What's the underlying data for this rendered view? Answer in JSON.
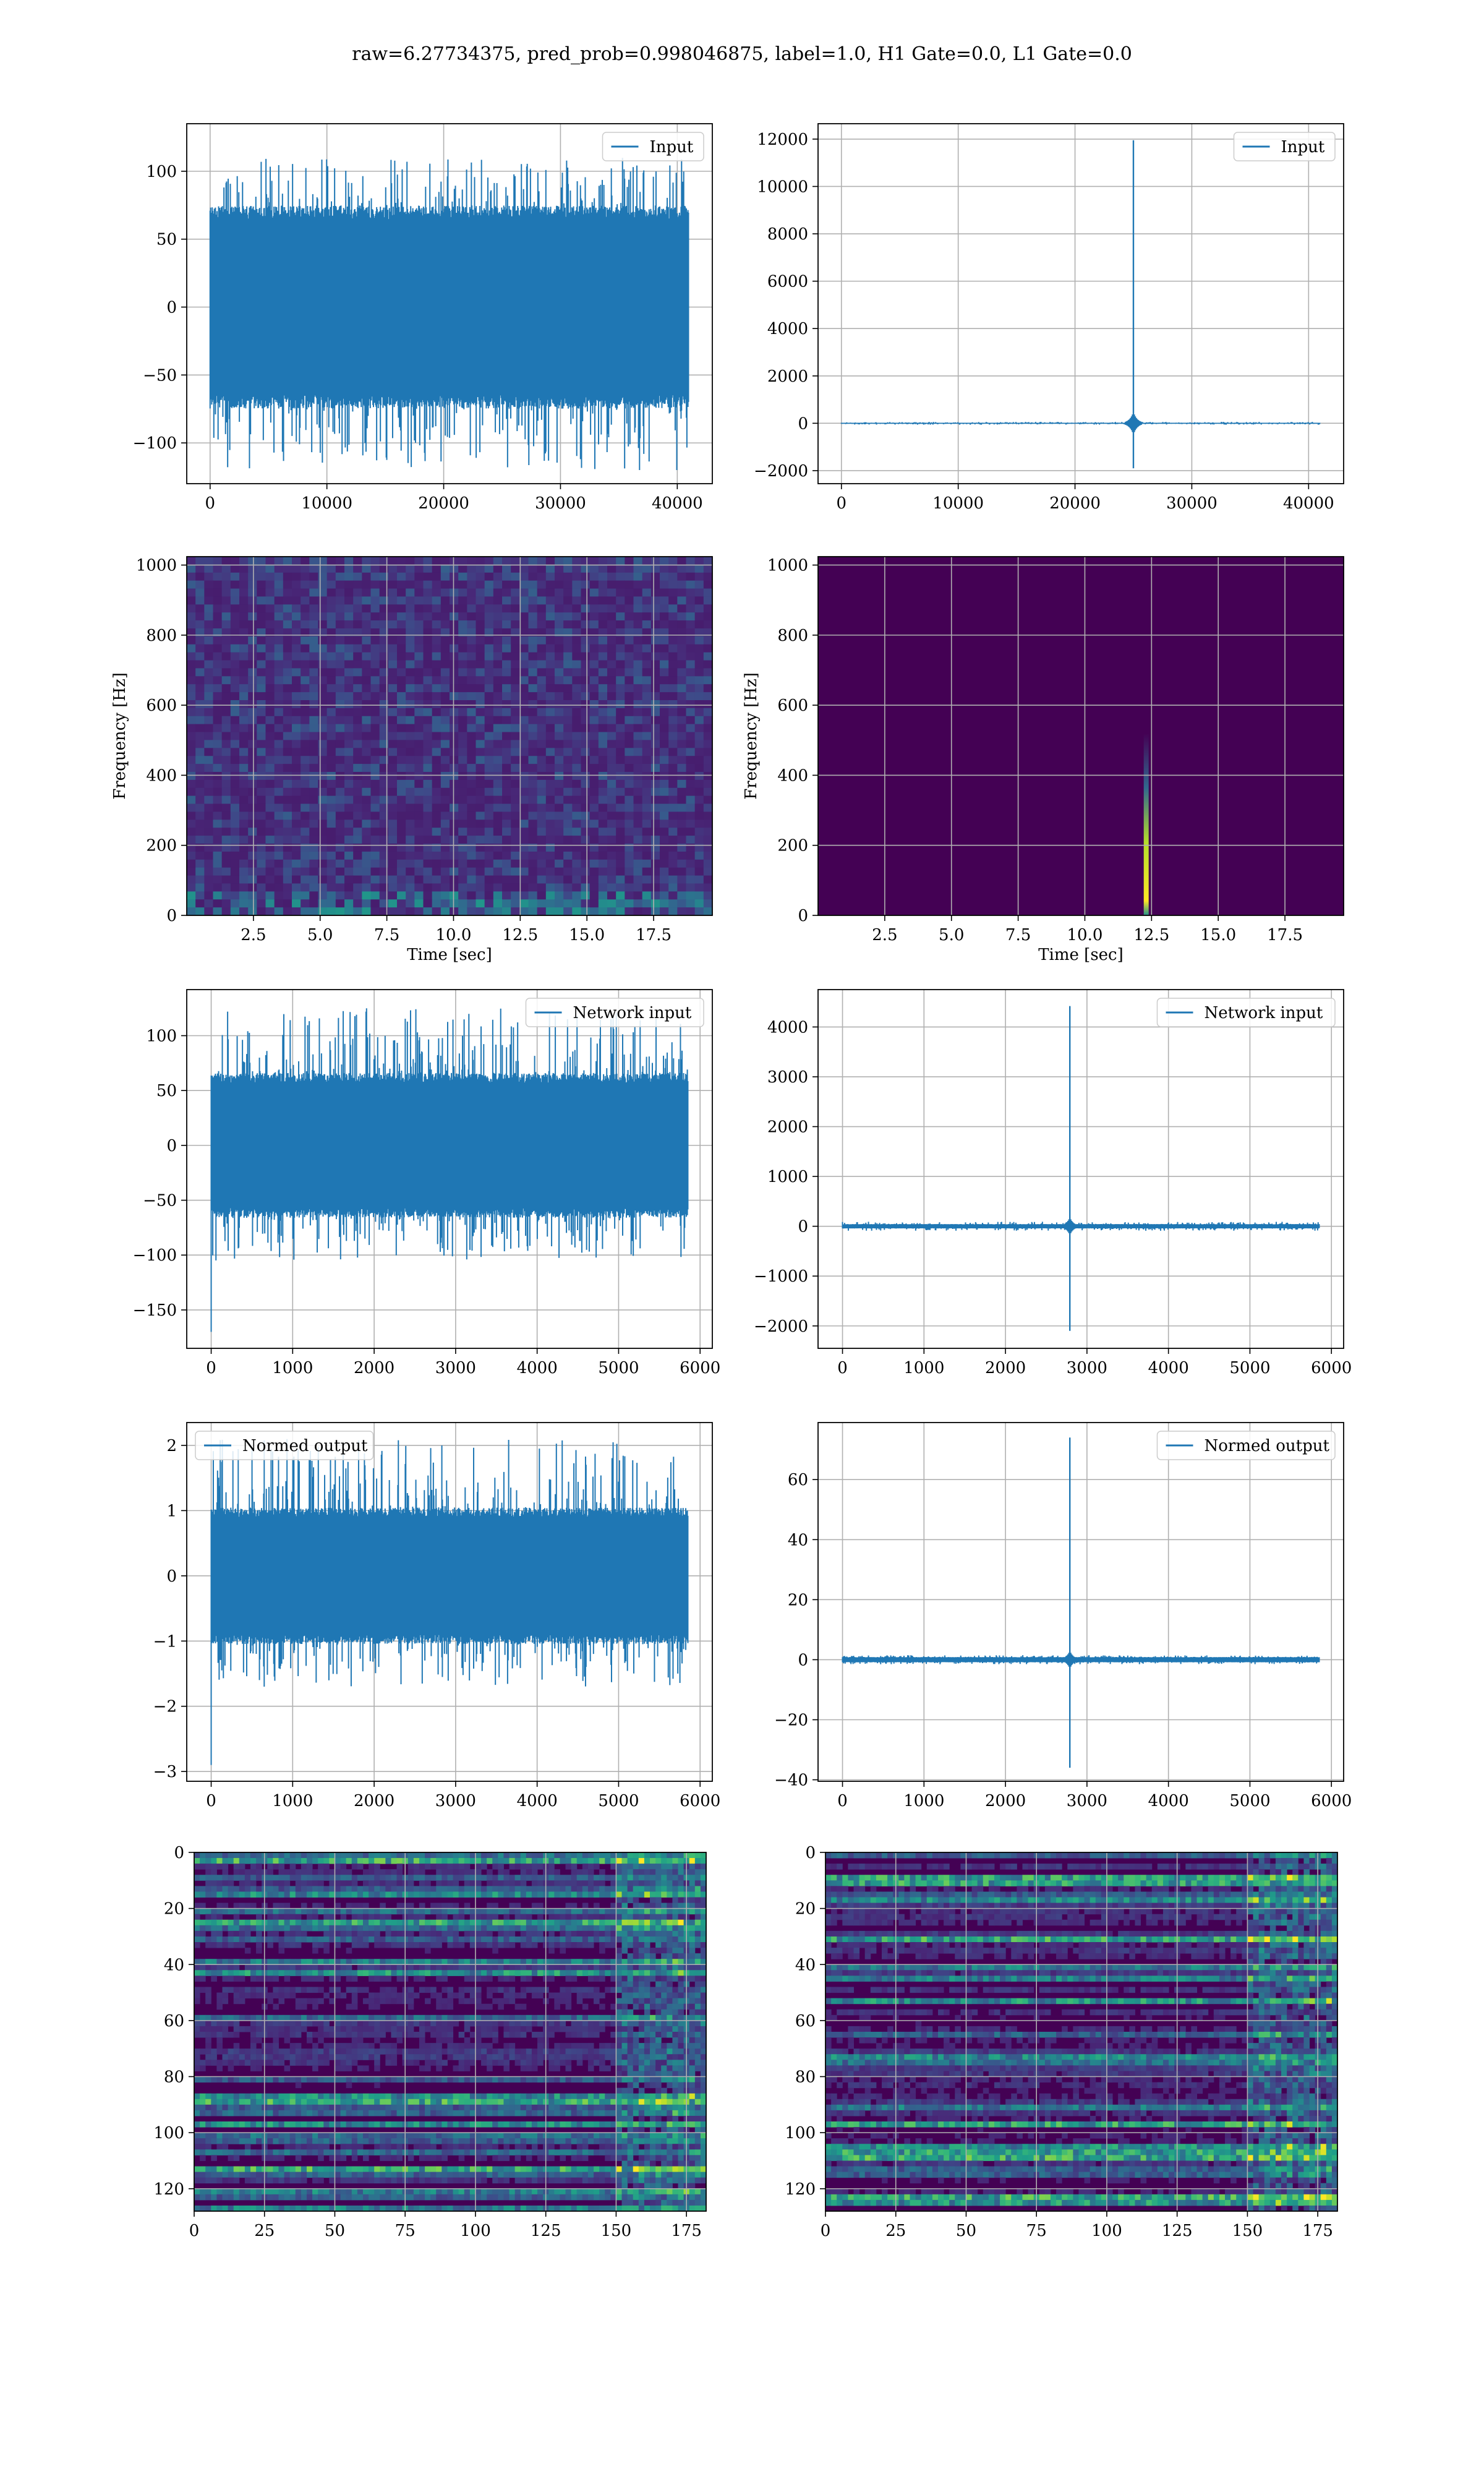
{
  "suptitle": "raw=6.27734375, pred_prob=0.998046875, label=1.0, H1 Gate=0.0, L1 Gate=0.0",
  "colors": {
    "line": "#1f77b4",
    "grid": "#b0b0b0",
    "viridis_dark": "#440154",
    "viridis_mid": "#21918c",
    "viridis_light": "#5ec962",
    "viridis_yellow": "#fde725"
  },
  "chart_data": [
    {
      "id": "input-h1",
      "type": "line",
      "legend": "Input",
      "legend_loc": "upper-right",
      "grid": true,
      "xlim": [
        -2000,
        43000
      ],
      "ylim": [
        -130,
        135
      ],
      "xticks": [
        0,
        10000,
        20000,
        30000,
        40000
      ],
      "yticks": [
        -100,
        -50,
        0,
        50,
        100
      ],
      "signal": {
        "n": 40960,
        "band": 68,
        "peak_max": 110,
        "peak_min": -120,
        "spike": null
      }
    },
    {
      "id": "input-l1",
      "type": "line",
      "legend": "Input",
      "legend_loc": "upper-right",
      "grid": true,
      "xlim": [
        -2000,
        43000
      ],
      "ylim": [
        -2550,
        12650
      ],
      "xticks": [
        0,
        10000,
        20000,
        30000,
        40000
      ],
      "yticks": [
        -2000,
        0,
        2000,
        4000,
        6000,
        8000,
        10000,
        12000
      ],
      "signal": {
        "n": 40960,
        "band": 20,
        "peak_max": 60,
        "peak_min": -60,
        "spike": {
          "x": 25000,
          "max": 11950,
          "min": -1900
        }
      }
    },
    {
      "id": "spectrogram-h1",
      "type": "heatmap",
      "grid": true,
      "xlabel": "Time [sec]",
      "ylabel": "Frequency [Hz]",
      "xlim": [
        0,
        19.7
      ],
      "ylim": [
        0,
        1024
      ],
      "xticks": [
        2.5,
        5.0,
        7.5,
        10.0,
        12.5,
        15.0,
        17.5
      ],
      "yticks": [
        0,
        200,
        400,
        600,
        800,
        1000
      ],
      "content": "noise"
    },
    {
      "id": "spectrogram-l1",
      "type": "heatmap",
      "grid": true,
      "xlabel": "Time [sec]",
      "ylabel": "Frequency [Hz]",
      "xlim": [
        0,
        19.7
      ],
      "ylim": [
        0,
        1024
      ],
      "xticks": [
        2.5,
        5.0,
        7.5,
        10.0,
        12.5,
        15.0,
        17.5
      ],
      "yticks": [
        0,
        200,
        400,
        600,
        800,
        1000
      ],
      "content": "transient",
      "transient_time": 12.3,
      "transient_top_hz": 520
    },
    {
      "id": "network-input-h1",
      "type": "line",
      "legend": "Network input",
      "legend_loc": "upper-right",
      "grid": true,
      "xlim": [
        -300,
        6150
      ],
      "ylim": [
        -185,
        142
      ],
      "xticks": [
        0,
        1000,
        2000,
        3000,
        4000,
        5000,
        6000
      ],
      "yticks": [
        -150,
        -100,
        -50,
        0,
        50,
        100
      ],
      "signal": {
        "n": 5850,
        "band": 60,
        "peak_max": 125,
        "peak_min": -105,
        "spike": null,
        "start_dip": -170
      }
    },
    {
      "id": "network-input-l1",
      "type": "line",
      "legend": "Network input",
      "legend_loc": "upper-right",
      "grid": true,
      "xlim": [
        -300,
        6150
      ],
      "ylim": [
        -2450,
        4750
      ],
      "xticks": [
        0,
        1000,
        2000,
        3000,
        4000,
        5000,
        6000
      ],
      "yticks": [
        -2000,
        -1000,
        0,
        1000,
        2000,
        3000,
        4000
      ],
      "signal": {
        "n": 5850,
        "band": 40,
        "peak_max": 90,
        "peak_min": -90,
        "spike": {
          "x": 2790,
          "max": 4420,
          "min": -2100
        }
      }
    },
    {
      "id": "normed-output-h1",
      "type": "line",
      "legend": "Normed output",
      "legend_loc": "upper-left",
      "grid": true,
      "xlim": [
        -300,
        6150
      ],
      "ylim": [
        -3.15,
        2.35
      ],
      "xticks": [
        0,
        1000,
        2000,
        3000,
        4000,
        5000,
        6000
      ],
      "yticks": [
        -3,
        -2,
        -1,
        0,
        1,
        2
      ],
      "signal": {
        "n": 5850,
        "band": 0.95,
        "peak_max": 2.1,
        "peak_min": -1.7,
        "spike": null,
        "start_dip": -2.9
      }
    },
    {
      "id": "normed-output-l1",
      "type": "line",
      "legend": "Normed output",
      "legend_loc": "upper-right",
      "grid": true,
      "xlim": [
        -300,
        6150
      ],
      "ylim": [
        -40.5,
        79
      ],
      "xticks": [
        0,
        1000,
        2000,
        3000,
        4000,
        5000,
        6000
      ],
      "yticks": [
        -40,
        -20,
        0,
        20,
        40,
        60
      ],
      "signal": {
        "n": 5850,
        "band": 0.8,
        "peak_max": 1.5,
        "peak_min": -1.5,
        "spike": {
          "x": 2790,
          "max": 74,
          "min": -36
        }
      }
    },
    {
      "id": "feature-map-h1",
      "type": "heatmap",
      "grid": true,
      "xlim": [
        0,
        182
      ],
      "ylim": [
        128,
        0
      ],
      "xticks": [
        0,
        25,
        50,
        75,
        100,
        125,
        150,
        175
      ],
      "yticks": [
        0,
        20,
        40,
        60,
        80,
        100,
        120
      ],
      "rows": 128,
      "cols": 182,
      "content": "features"
    },
    {
      "id": "feature-map-l1",
      "type": "heatmap",
      "grid": true,
      "xlim": [
        0,
        182
      ],
      "ylim": [
        128,
        0
      ],
      "xticks": [
        0,
        25,
        50,
        75,
        100,
        125,
        150,
        175
      ],
      "yticks": [
        0,
        20,
        40,
        60,
        80,
        100,
        120
      ],
      "rows": 128,
      "cols": 182,
      "content": "features"
    }
  ]
}
